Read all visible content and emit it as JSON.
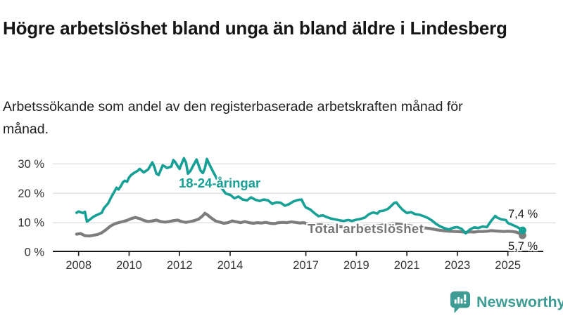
{
  "header": {
    "title": "Högre arbetslöshet bland unga än bland äldre i Lindesberg",
    "subtitle": "Arbetssökande som andel av den registerbaserade arbetskraften månad för månad."
  },
  "footer": {
    "brand": "Newsworthy",
    "logo_icon": "bar-chart-speech-bubble-icon",
    "brand_color": "#3E9C94"
  },
  "chart_data": {
    "type": "line",
    "title": "Högre arbetslöshet bland unga än bland äldre i Lindesberg",
    "xlabel": "",
    "ylabel": "",
    "unit": "%",
    "grid": "horizontal",
    "legend_position": "inline-labels",
    "xlim": [
      2007.9,
      2026.4
    ],
    "ylim": [
      0,
      33
    ],
    "y_ticks": [
      0,
      10,
      20,
      30
    ],
    "y_tick_labels": [
      "0 %",
      "10 %",
      "20 %",
      "30 %"
    ],
    "x_ticks": [
      2008,
      2010,
      2012,
      2014,
      2017,
      2019,
      2021,
      2023,
      2025
    ],
    "x_tick_labels": [
      "2008",
      "2010",
      "2012",
      "2014",
      "2017",
      "2019",
      "2021",
      "2023",
      "2025"
    ],
    "series": [
      {
        "name": "18-24-åringar",
        "color": "#16A096",
        "end_value": 7.4,
        "end_label": "7,4 %",
        "points": [
          [
            2007.92,
            13.4
          ],
          [
            2008.0,
            13.8
          ],
          [
            2008.17,
            13.3
          ],
          [
            2008.25,
            13.7
          ],
          [
            2008.33,
            10.4
          ],
          [
            2008.42,
            10.9
          ],
          [
            2008.58,
            12.0
          ],
          [
            2008.75,
            12.7
          ],
          [
            2008.92,
            13.4
          ],
          [
            2009.0,
            14.9
          ],
          [
            2009.17,
            16.6
          ],
          [
            2009.33,
            19.3
          ],
          [
            2009.42,
            20.6
          ],
          [
            2009.5,
            21.9
          ],
          [
            2009.58,
            21.3
          ],
          [
            2009.67,
            22.4
          ],
          [
            2009.75,
            23.7
          ],
          [
            2009.83,
            24.3
          ],
          [
            2009.92,
            23.9
          ],
          [
            2010.0,
            25.4
          ],
          [
            2010.08,
            26.2
          ],
          [
            2010.17,
            26.8
          ],
          [
            2010.33,
            27.6
          ],
          [
            2010.42,
            28.3
          ],
          [
            2010.5,
            27.7
          ],
          [
            2010.58,
            27.1
          ],
          [
            2010.75,
            28.1
          ],
          [
            2010.92,
            30.5
          ],
          [
            2011.0,
            29.0
          ],
          [
            2011.08,
            26.7
          ],
          [
            2011.17,
            26.2
          ],
          [
            2011.33,
            29.5
          ],
          [
            2011.42,
            29.1
          ],
          [
            2011.5,
            28.6
          ],
          [
            2011.67,
            29.1
          ],
          [
            2011.75,
            31.3
          ],
          [
            2011.83,
            30.6
          ],
          [
            2011.92,
            29.3
          ],
          [
            2012.0,
            28.3
          ],
          [
            2012.08,
            30.1
          ],
          [
            2012.17,
            31.9
          ],
          [
            2012.25,
            30.5
          ],
          [
            2012.33,
            26.7
          ],
          [
            2012.42,
            27.5
          ],
          [
            2012.5,
            28.8
          ],
          [
            2012.67,
            31.5
          ],
          [
            2012.75,
            29.6
          ],
          [
            2012.83,
            27.7
          ],
          [
            2012.92,
            26.9
          ],
          [
            2013.0,
            28.5
          ],
          [
            2013.08,
            31.7
          ],
          [
            2013.17,
            30.0
          ],
          [
            2013.33,
            27.3
          ],
          [
            2013.5,
            24.6
          ],
          [
            2013.67,
            21.7
          ],
          [
            2013.83,
            19.9
          ],
          [
            2014.0,
            19.5
          ],
          [
            2014.17,
            18.3
          ],
          [
            2014.33,
            18.9
          ],
          [
            2014.5,
            17.9
          ],
          [
            2014.67,
            17.6
          ],
          [
            2014.83,
            18.6
          ],
          [
            2015.0,
            17.8
          ],
          [
            2015.17,
            17.4
          ],
          [
            2015.33,
            17.9
          ],
          [
            2015.5,
            17.6
          ],
          [
            2015.67,
            16.4
          ],
          [
            2015.83,
            16.9
          ],
          [
            2016.0,
            16.8
          ],
          [
            2016.17,
            15.8
          ],
          [
            2016.33,
            16.3
          ],
          [
            2016.5,
            17.2
          ],
          [
            2016.67,
            17.7
          ],
          [
            2016.83,
            17.9
          ],
          [
            2016.92,
            16.3
          ],
          [
            2017.0,
            15.2
          ],
          [
            2017.17,
            14.5
          ],
          [
            2017.33,
            13.3
          ],
          [
            2017.5,
            12.2
          ],
          [
            2017.67,
            12.5
          ],
          [
            2017.83,
            11.9
          ],
          [
            2018.0,
            11.4
          ],
          [
            2018.17,
            11.1
          ],
          [
            2018.33,
            10.8
          ],
          [
            2018.5,
            10.6
          ],
          [
            2018.67,
            10.9
          ],
          [
            2018.83,
            10.6
          ],
          [
            2019.0,
            11.0
          ],
          [
            2019.17,
            11.3
          ],
          [
            2019.33,
            11.7
          ],
          [
            2019.5,
            12.9
          ],
          [
            2019.67,
            13.5
          ],
          [
            2019.83,
            13.1
          ],
          [
            2019.92,
            13.9
          ],
          [
            2020.08,
            14.1
          ],
          [
            2020.25,
            14.7
          ],
          [
            2020.33,
            15.3
          ],
          [
            2020.5,
            16.7
          ],
          [
            2020.58,
            16.9
          ],
          [
            2020.67,
            15.9
          ],
          [
            2020.83,
            14.4
          ],
          [
            2021.0,
            13.3
          ],
          [
            2021.17,
            13.6
          ],
          [
            2021.33,
            12.9
          ],
          [
            2021.5,
            12.7
          ],
          [
            2021.67,
            12.2
          ],
          [
            2021.83,
            11.6
          ],
          [
            2022.0,
            10.7
          ],
          [
            2022.17,
            9.5
          ],
          [
            2022.33,
            8.7
          ],
          [
            2022.5,
            8.1
          ],
          [
            2022.67,
            7.7
          ],
          [
            2022.83,
            8.3
          ],
          [
            2023.0,
            8.5
          ],
          [
            2023.17,
            7.9
          ],
          [
            2023.33,
            6.4
          ],
          [
            2023.5,
            7.7
          ],
          [
            2023.67,
            8.4
          ],
          [
            2023.83,
            8.2
          ],
          [
            2024.0,
            8.7
          ],
          [
            2024.17,
            8.5
          ],
          [
            2024.33,
            10.5
          ],
          [
            2024.5,
            12.3
          ],
          [
            2024.58,
            11.7
          ],
          [
            2024.75,
            11.1
          ],
          [
            2024.92,
            10.9
          ],
          [
            2025.0,
            9.9
          ],
          [
            2025.17,
            9.3
          ],
          [
            2025.33,
            8.7
          ],
          [
            2025.5,
            7.9
          ],
          [
            2025.58,
            7.4
          ]
        ]
      },
      {
        "name": "Total arbetslöshet",
        "color": "#7D7D7D",
        "end_value": 5.7,
        "end_label": "5,7 %",
        "points": [
          [
            2007.92,
            6.1
          ],
          [
            2008.08,
            6.3
          ],
          [
            2008.25,
            5.6
          ],
          [
            2008.42,
            5.5
          ],
          [
            2008.58,
            5.7
          ],
          [
            2008.75,
            6.0
          ],
          [
            2008.92,
            6.6
          ],
          [
            2009.08,
            7.6
          ],
          [
            2009.25,
            8.8
          ],
          [
            2009.42,
            9.6
          ],
          [
            2009.58,
            10.0
          ],
          [
            2009.75,
            10.4
          ],
          [
            2009.92,
            10.8
          ],
          [
            2010.08,
            11.4
          ],
          [
            2010.25,
            11.8
          ],
          [
            2010.42,
            11.4
          ],
          [
            2010.58,
            10.8
          ],
          [
            2010.75,
            10.4
          ],
          [
            2010.92,
            10.6
          ],
          [
            2011.08,
            10.9
          ],
          [
            2011.25,
            10.4
          ],
          [
            2011.42,
            10.2
          ],
          [
            2011.58,
            10.4
          ],
          [
            2011.75,
            10.7
          ],
          [
            2011.92,
            10.9
          ],
          [
            2012.08,
            10.4
          ],
          [
            2012.25,
            10.1
          ],
          [
            2012.42,
            10.4
          ],
          [
            2012.58,
            10.7
          ],
          [
            2012.75,
            11.2
          ],
          [
            2012.92,
            12.4
          ],
          [
            2013.0,
            13.2
          ],
          [
            2013.08,
            12.8
          ],
          [
            2013.25,
            11.6
          ],
          [
            2013.42,
            10.6
          ],
          [
            2013.58,
            10.2
          ],
          [
            2013.75,
            9.8
          ],
          [
            2013.92,
            10.0
          ],
          [
            2014.08,
            10.6
          ],
          [
            2014.25,
            10.3
          ],
          [
            2014.42,
            10.0
          ],
          [
            2014.58,
            10.4
          ],
          [
            2014.75,
            10.0
          ],
          [
            2014.92,
            9.8
          ],
          [
            2015.08,
            10.0
          ],
          [
            2015.25,
            9.9
          ],
          [
            2015.42,
            10.1
          ],
          [
            2015.58,
            9.8
          ],
          [
            2015.75,
            9.7
          ],
          [
            2015.92,
            10.0
          ],
          [
            2016.08,
            10.1
          ],
          [
            2016.25,
            10.0
          ],
          [
            2016.42,
            10.3
          ],
          [
            2016.58,
            10.1
          ],
          [
            2016.75,
            9.9
          ],
          [
            2016.92,
            10.0
          ],
          [
            2017.08,
            9.6
          ],
          [
            2017.25,
            9.4
          ],
          [
            2017.42,
            9.2
          ],
          [
            2017.58,
            9.3
          ],
          [
            2017.75,
            9.1
          ],
          [
            2017.92,
            8.9
          ],
          [
            2018.17,
            8.8
          ],
          [
            2018.42,
            8.6
          ],
          [
            2018.67,
            8.7
          ],
          [
            2018.92,
            8.6
          ],
          [
            2019.17,
            8.7
          ],
          [
            2019.42,
            8.9
          ],
          [
            2019.67,
            8.8
          ],
          [
            2019.92,
            9.0
          ],
          [
            2020.17,
            9.4
          ],
          [
            2020.42,
            9.7
          ],
          [
            2020.67,
            9.5
          ],
          [
            2020.92,
            9.2
          ],
          [
            2021.17,
            8.9
          ],
          [
            2021.42,
            8.6
          ],
          [
            2021.67,
            8.3
          ],
          [
            2021.92,
            8.0
          ],
          [
            2022.17,
            7.6
          ],
          [
            2022.42,
            7.3
          ],
          [
            2022.67,
            7.1
          ],
          [
            2022.92,
            7.0
          ],
          [
            2023.17,
            6.9
          ],
          [
            2023.33,
            6.7
          ],
          [
            2023.5,
            6.9
          ],
          [
            2023.67,
            6.8
          ],
          [
            2023.83,
            7.0
          ],
          [
            2024.0,
            7.0
          ],
          [
            2024.17,
            7.1
          ],
          [
            2024.33,
            7.3
          ],
          [
            2024.5,
            7.2
          ],
          [
            2024.67,
            7.1
          ],
          [
            2024.83,
            7.0
          ],
          [
            2025.0,
            7.1
          ],
          [
            2025.17,
            7.0
          ],
          [
            2025.33,
            6.8
          ],
          [
            2025.5,
            6.2
          ],
          [
            2025.58,
            5.7
          ]
        ]
      }
    ]
  }
}
